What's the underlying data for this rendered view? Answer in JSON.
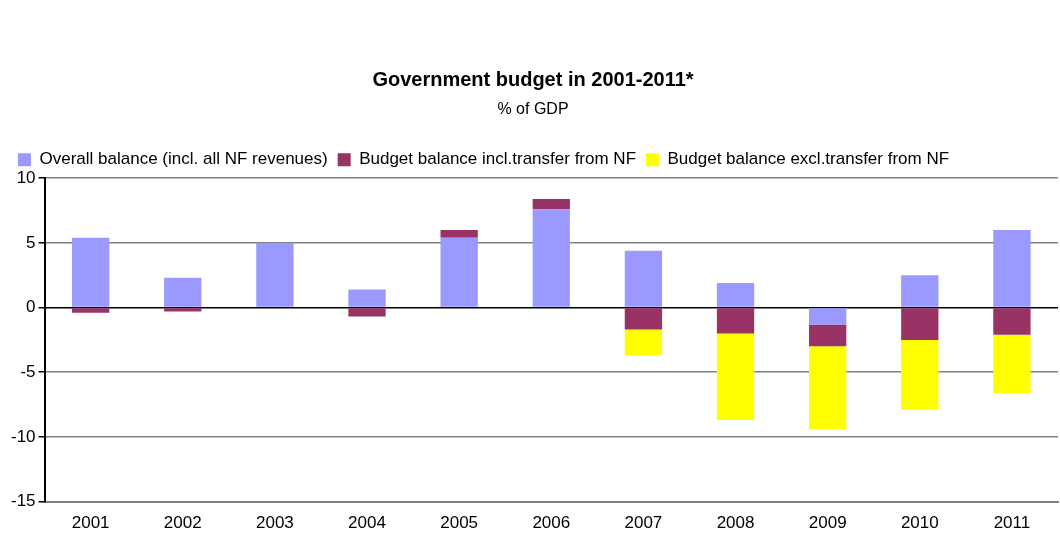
{
  "chart_data": {
    "type": "bar",
    "title": "Government budget in 2001-2011*",
    "subtitle": "% of GDP",
    "categories": [
      "2001",
      "2002",
      "2003",
      "2004",
      "2005",
      "2006",
      "2007",
      "2008",
      "2009",
      "2010",
      "2011"
    ],
    "series": [
      {
        "name": "Overall balance (incl. all NF revenues)",
        "color": "#9999ff",
        "values": [
          5.4,
          2.3,
          5.0,
          1.4,
          5.4,
          7.6,
          4.4,
          1.9,
          -1.3,
          2.5,
          6.0
        ]
      },
      {
        "name": "Budget balance incl.transfer from NF",
        "color": "#993366",
        "values": [
          -0.4,
          -0.3,
          0,
          -0.7,
          0.6,
          0.8,
          -1.7,
          -2.0,
          -1.7,
          -2.5,
          -2.1
        ]
      },
      {
        "name": "Budget balance excl.transfer from NF",
        "color": "#ffff00",
        "values": [
          null,
          null,
          null,
          null,
          null,
          null,
          -2.0,
          -6.7,
          -6.4,
          -5.4,
          -4.5
        ]
      }
    ],
    "stacked": true,
    "ylim": [
      -15,
      10
    ],
    "yticks": [
      -15,
      -10,
      -5,
      0,
      5,
      10
    ],
    "grid": "y",
    "legend": "top left"
  }
}
